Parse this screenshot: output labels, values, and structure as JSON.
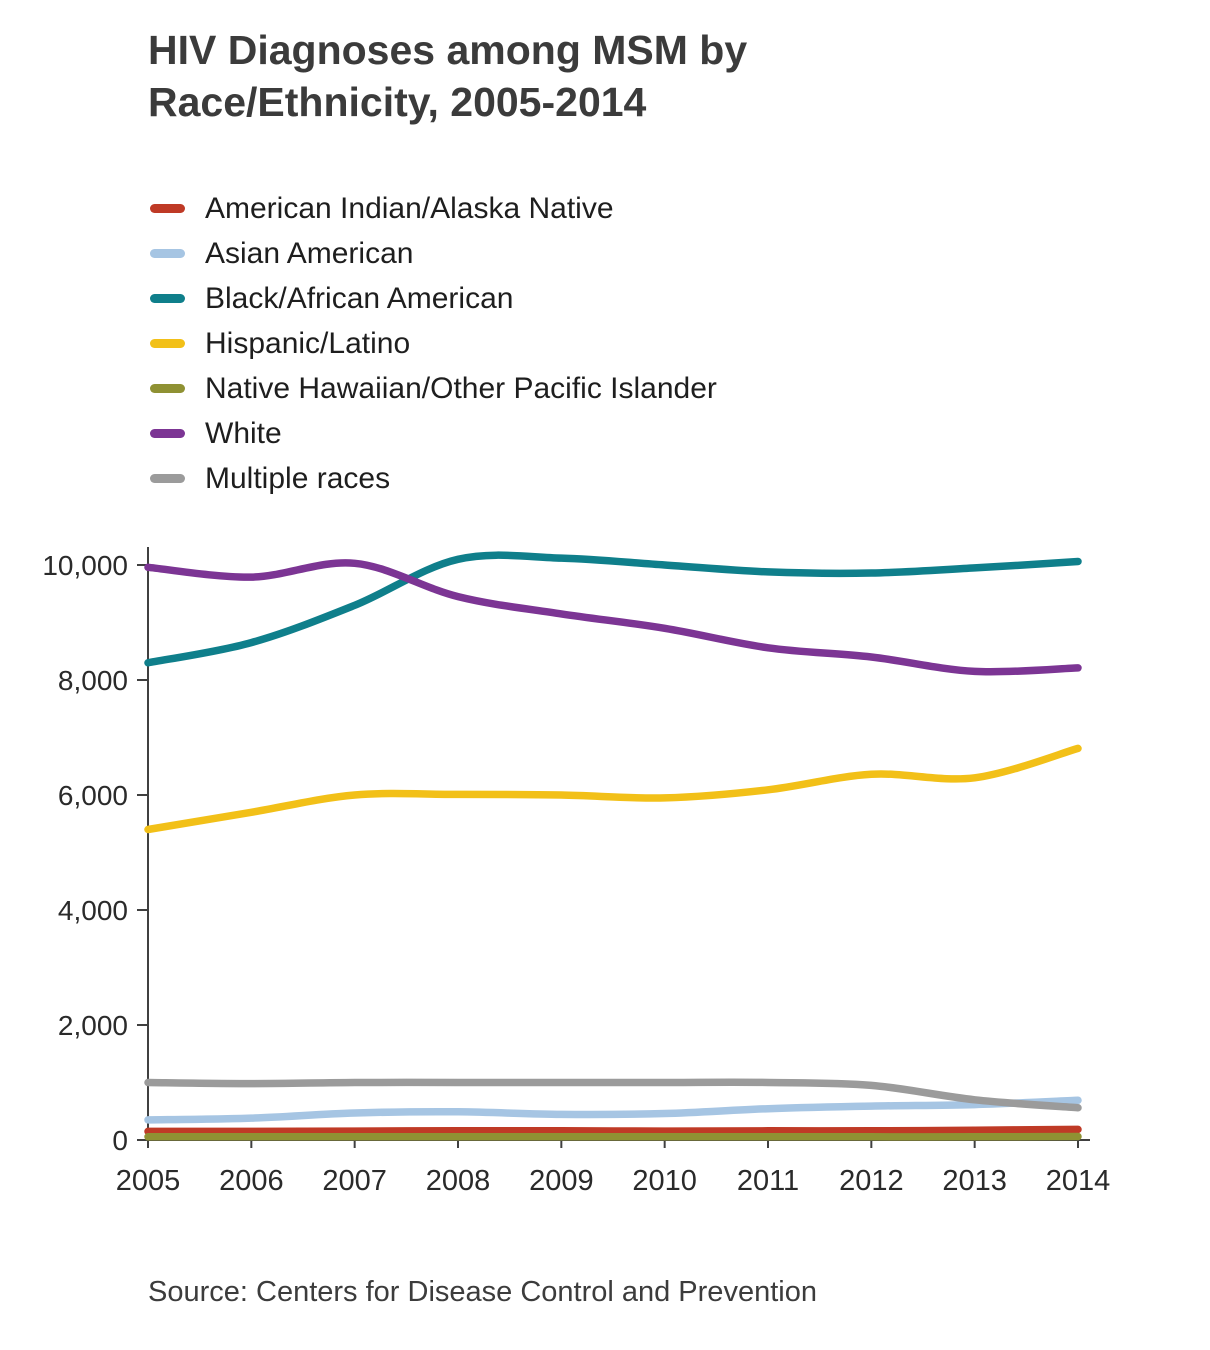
{
  "page": {
    "title": "HIV Diagnoses among MSM by Race/Ethnicity, 2005-2014",
    "source": "Source: Centers for Disease Control and Prevention"
  },
  "chart_data": {
    "type": "line",
    "title": "HIV Diagnoses among MSM by Race/Ethnicity, 2005-2014",
    "x": [
      2005,
      2006,
      2007,
      2008,
      2009,
      2010,
      2011,
      2012,
      2013,
      2014
    ],
    "xlabel": "",
    "ylabel": "",
    "ylim": [
      0,
      10000
    ],
    "yticks": [
      0,
      2000,
      4000,
      6000,
      8000,
      10000
    ],
    "ytick_labels": [
      "0",
      "2,000",
      "4,000",
      "6,000",
      "8,000",
      "10,000"
    ],
    "grid": false,
    "legend_position": "top-left",
    "axis_color": "#404040",
    "tick_text_color": "#2a2a2a",
    "series": [
      {
        "name": "American Indian/Alaska Native",
        "color": "#bf3a26",
        "values": [
          150,
          150,
          155,
          160,
          160,
          155,
          160,
          160,
          170,
          185
        ]
      },
      {
        "name": "Asian American",
        "color": "#a6c5e3",
        "values": [
          350,
          380,
          470,
          490,
          445,
          460,
          545,
          590,
          615,
          690
        ]
      },
      {
        "name": "Black/African American",
        "color": "#0f7f8b",
        "values": [
          8300,
          8650,
          9300,
          10100,
          10120,
          10000,
          9880,
          9860,
          9950,
          10060
        ]
      },
      {
        "name": "Hispanic/Latino",
        "color": "#f2c018",
        "values": [
          5400,
          5700,
          6000,
          6010,
          6000,
          5950,
          6090,
          6360,
          6300,
          6810
        ]
      },
      {
        "name": "Native Hawaiian/Other Pacific Islander",
        "color": "#8f9133",
        "values": [
          55,
          55,
          55,
          55,
          55,
          55,
          55,
          55,
          55,
          60
        ]
      },
      {
        "name": "White",
        "color": "#7c3594",
        "values": [
          9960,
          9790,
          10030,
          9450,
          9150,
          8900,
          8560,
          8400,
          8150,
          8210
        ]
      },
      {
        "name": "Multiple races",
        "color": "#9b9b9b",
        "values": [
          1000,
          980,
          1000,
          1000,
          1000,
          1000,
          1000,
          950,
          700,
          560
        ]
      }
    ],
    "source": "Source: Centers for Disease Control and Prevention"
  }
}
